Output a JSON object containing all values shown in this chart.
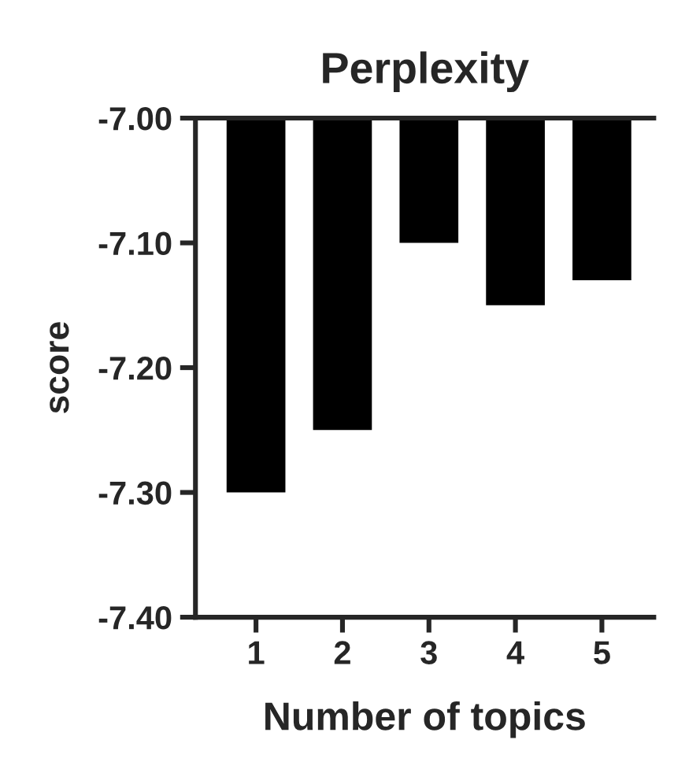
{
  "chart_data": {
    "type": "bar",
    "title": "Perplexity",
    "xlabel": "Number of topics",
    "ylabel": "score",
    "categories": [
      "1",
      "2",
      "3",
      "4",
      "5"
    ],
    "values": [
      -7.3,
      -7.25,
      -7.1,
      -7.15,
      -7.13
    ],
    "color": "#000000",
    "ylim": [
      -7.4,
      -7.0
    ],
    "yticks": [
      {
        "value": -7.4,
        "label": "-7.40"
      },
      {
        "value": -7.3,
        "label": "-7.30"
      },
      {
        "value": -7.2,
        "label": "-7.20"
      },
      {
        "value": -7.1,
        "label": "-7.10"
      },
      {
        "value": -7.0,
        "label": "-7.00"
      }
    ],
    "grid": false,
    "legend": false
  }
}
